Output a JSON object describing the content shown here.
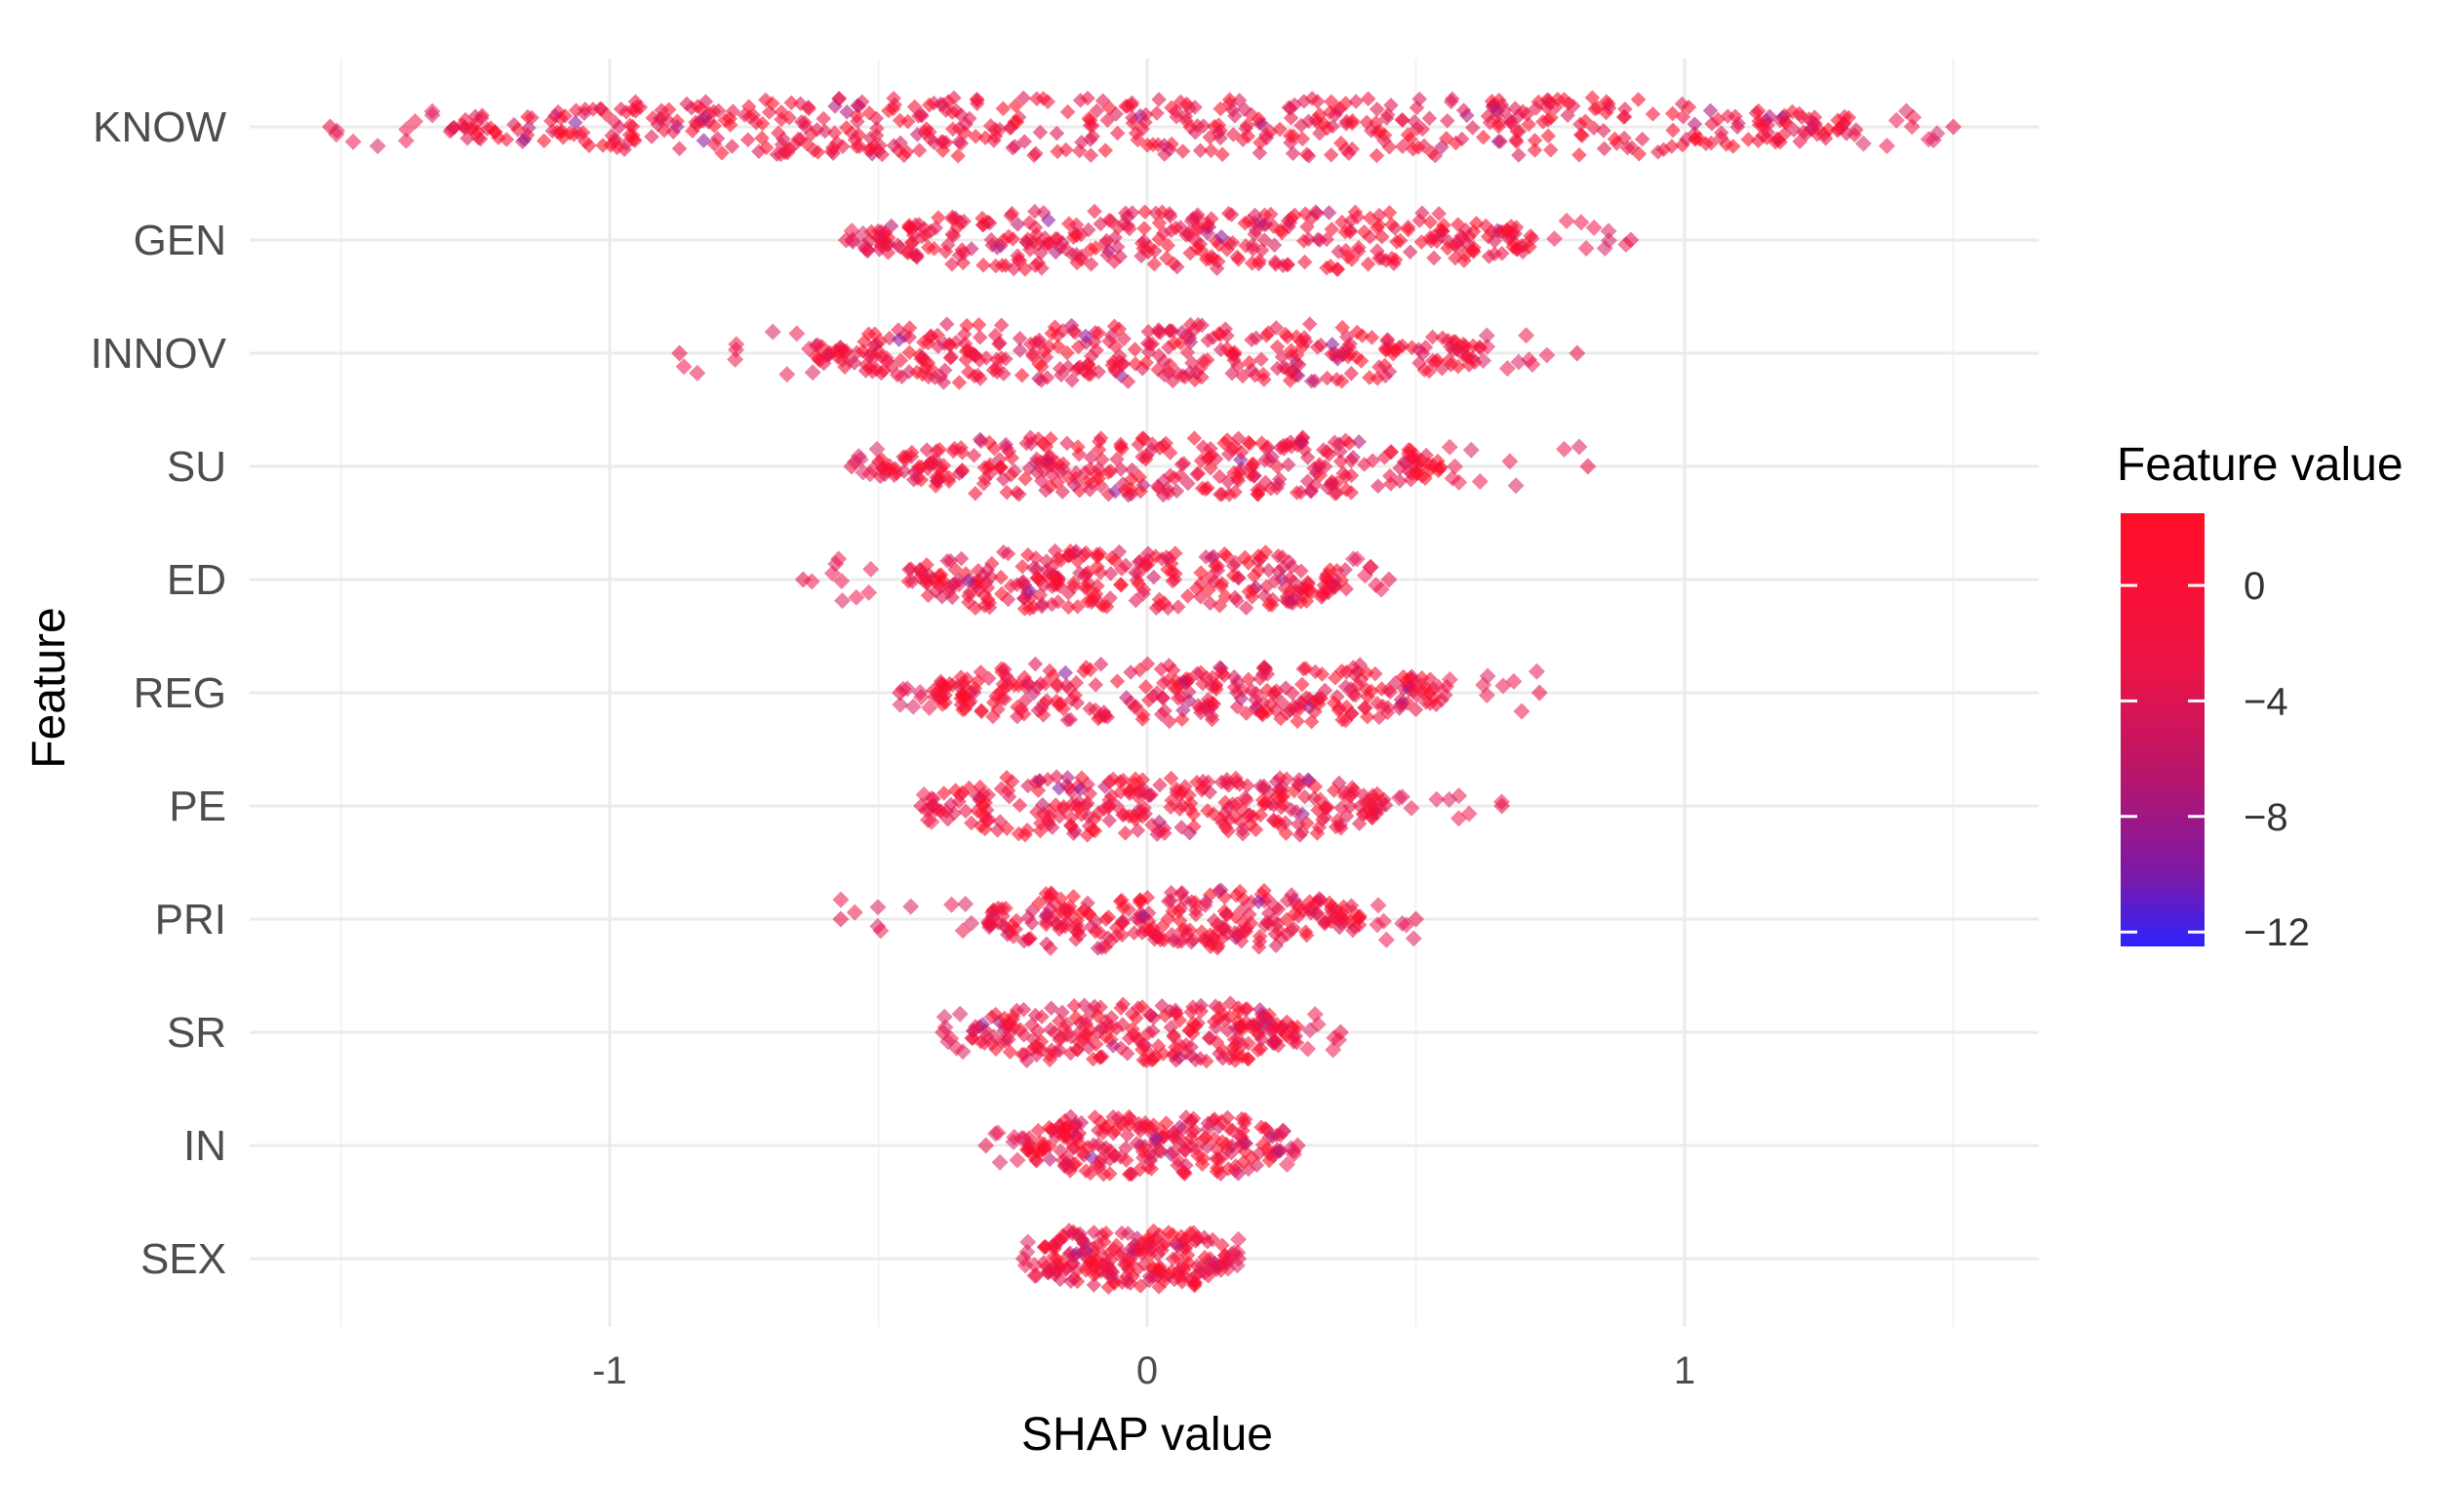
{
  "chart_data": {
    "type": "scatter",
    "subtype": "shap-beeswarm",
    "xlabel": "SHAP value",
    "ylabel": "Feature",
    "xlim": [
      -1.58,
      1.58
    ],
    "x_ticks": [
      -1,
      0,
      1
    ],
    "x_tick_labels": [
      "-1",
      "0",
      "1"
    ],
    "grid": true,
    "legend": {
      "title": "Feature value",
      "placement": "right",
      "range": [
        -12.5,
        2.5
      ],
      "ticks": [
        0,
        -4,
        -8,
        -12
      ],
      "tick_labels": [
        "0",
        "−4",
        "−8",
        "−12"
      ],
      "colors": {
        "high": "#ff0d26",
        "mid": "#d9195f",
        "low": "#3b1fff"
      }
    },
    "features": [
      {
        "name": "KNOW",
        "shap_min": -1.52,
        "shap_max": 1.5,
        "core_min": -1.3,
        "core_max": 1.32
      },
      {
        "name": "GEN",
        "shap_min": -0.56,
        "shap_max": 0.9,
        "core_min": -0.52,
        "core_max": 0.72
      },
      {
        "name": "INNOV",
        "shap_min": -0.87,
        "shap_max": 0.8,
        "core_min": -0.62,
        "core_max": 0.62
      },
      {
        "name": "SU",
        "shap_min": -0.55,
        "shap_max": 0.82,
        "core_min": -0.5,
        "core_max": 0.55
      },
      {
        "name": "ED",
        "shap_min": -0.64,
        "shap_max": 0.45,
        "core_min": -0.45,
        "core_max": 0.38
      },
      {
        "name": "REG",
        "shap_min": -0.46,
        "shap_max": 0.73,
        "core_min": -0.4,
        "core_max": 0.56
      },
      {
        "name": "PE",
        "shap_min": -0.42,
        "shap_max": 0.66,
        "core_min": -0.4,
        "core_max": 0.45
      },
      {
        "name": "PRI",
        "shap_min": -0.57,
        "shap_max": 0.5,
        "core_min": -0.3,
        "core_max": 0.4
      },
      {
        "name": "SR",
        "shap_min": -0.38,
        "shap_max": 0.36,
        "core_min": -0.33,
        "core_max": 0.28
      },
      {
        "name": "IN",
        "shap_min": -0.3,
        "shap_max": 0.28,
        "core_min": -0.23,
        "core_max": 0.25
      },
      {
        "name": "SEX",
        "shap_min": -0.23,
        "shap_max": 0.17,
        "core_min": -0.2,
        "core_max": 0.15
      }
    ]
  }
}
